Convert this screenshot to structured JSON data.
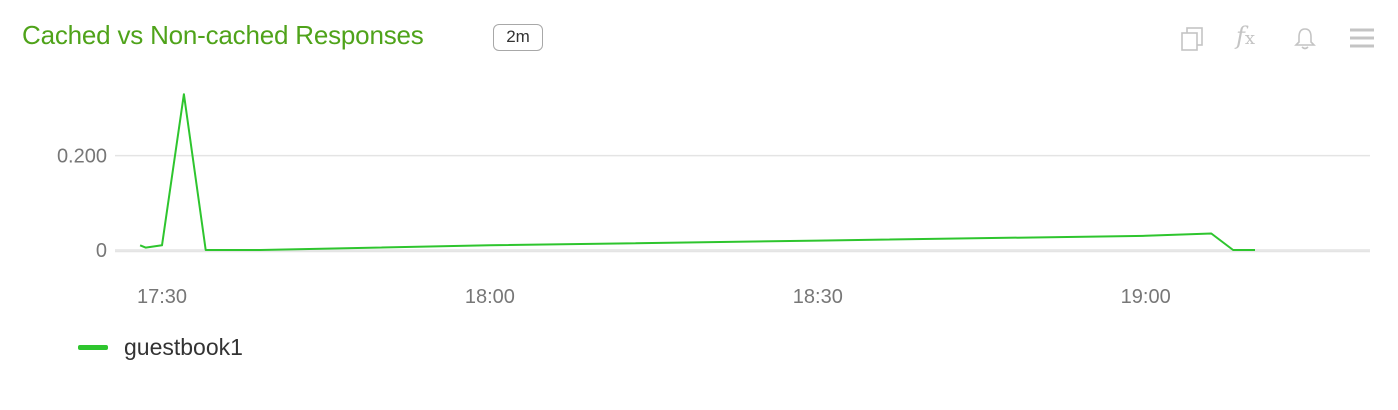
{
  "header": {
    "title": "Cached vs Non-cached Responses",
    "interval_badge": "2m",
    "tools": [
      "copy-icon",
      "function-icon",
      "bell-icon",
      "menu-icon"
    ],
    "fx_label": "f",
    "fx_sub": "x"
  },
  "colors": {
    "title": "#4fa31a",
    "series": "#2ec52e",
    "grid": "#e4e4e4",
    "axis_text": "#777777",
    "icons": "#c4c4c4"
  },
  "chart_data": {
    "type": "line",
    "title": "Cached vs Non-cached Responses",
    "xlabel": "",
    "ylabel": "",
    "x_ticks": [
      "17:30",
      "18:00",
      "18:30",
      "19:00"
    ],
    "y_ticks": [
      "0",
      "0.200"
    ],
    "ylim": [
      0,
      0.35
    ],
    "grid": true,
    "legend_position": "bottom-left",
    "series": [
      {
        "name": "guestbook1",
        "points": [
          {
            "x": "17:28",
            "y": 0.01
          },
          {
            "x": "17:28:30",
            "y": 0.005
          },
          {
            "x": "17:30",
            "y": 0.01
          },
          {
            "x": "17:32",
            "y": 0.33
          },
          {
            "x": "17:34",
            "y": 0.0
          },
          {
            "x": "17:39",
            "y": 0.0
          },
          {
            "x": "18:00",
            "y": 0.01
          },
          {
            "x": "18:30",
            "y": 0.02
          },
          {
            "x": "19:00",
            "y": 0.03
          },
          {
            "x": "19:06",
            "y": 0.035
          },
          {
            "x": "19:08",
            "y": 0.0
          },
          {
            "x": "19:10",
            "y": 0.0
          }
        ]
      }
    ]
  }
}
